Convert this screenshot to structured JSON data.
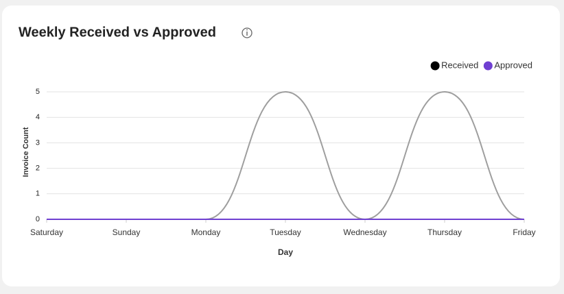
{
  "chart_data": {
    "type": "line",
    "title": "Weekly Received vs Approved",
    "categories": [
      "Saturday",
      "Sunday",
      "Monday",
      "Tuesday",
      "Wednesday",
      "Thursday",
      "Friday"
    ],
    "series": [
      {
        "name": "Received",
        "color": "#9e9e9e",
        "legend_color": "#000000",
        "values": [
          0,
          0,
          0,
          5,
          0,
          5,
          0
        ]
      },
      {
        "name": "Approved",
        "color": "#6f3fd1",
        "legend_color": "#6f3fd1",
        "values": [
          0,
          0,
          0,
          0,
          0,
          0,
          0
        ]
      }
    ],
    "x_label": "Day",
    "y_label": "Invoice Count",
    "ylim": [
      0,
      5
    ],
    "yticks": [
      0,
      1,
      2,
      3,
      4,
      5
    ],
    "grid": true,
    "smooth": true,
    "legend": "top-right"
  }
}
